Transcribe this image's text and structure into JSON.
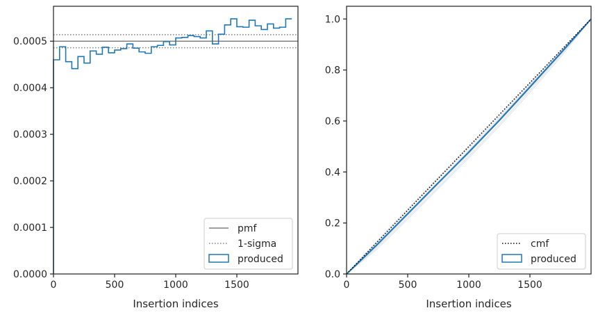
{
  "chart_data": [
    {
      "type": "histogram",
      "xlabel": "Insertion indices",
      "ylabel": "",
      "xlim": [
        0,
        2000
      ],
      "ylim": [
        0,
        0.000575
      ],
      "xticks": [
        0,
        500,
        1000,
        1500
      ],
      "xtick_labels": [
        "0",
        "500",
        "1000",
        "1500"
      ],
      "yticks": [
        0,
        0.0001,
        0.0002,
        0.0003,
        0.0004,
        0.0005
      ],
      "ytick_labels": [
        "0.0000",
        "0.0001",
        "0.0002",
        "0.0003",
        "0.0004",
        "0.0005"
      ],
      "pmf": 0.0005,
      "sigma_band": [
        0.000486,
        0.000514
      ],
      "bin_width": 50,
      "produced": [
        0.00046,
        0.000488,
        0.000456,
        0.000441,
        0.000467,
        0.000453,
        0.000479,
        0.000472,
        0.000487,
        0.000475,
        0.000481,
        0.000484,
        0.000494,
        0.000485,
        0.000477,
        0.000474,
        0.000488,
        0.000491,
        0.000499,
        0.000492,
        0.000507,
        0.000508,
        0.000512,
        0.00051,
        0.000507,
        0.000522,
        0.000494,
        0.000515,
        0.000535,
        0.000548,
        0.000531,
        0.00053,
        0.000545,
        0.000533,
        0.000525,
        0.000537,
        0.000528,
        0.00053,
        0.000548
      ],
      "legend": {
        "placement": "lower-right",
        "entries": [
          {
            "label": "pmf",
            "style": "solid",
            "color": "#808080"
          },
          {
            "label": "1-sigma",
            "style": "dotted",
            "color": "#808080"
          },
          {
            "label": "produced",
            "style": "box",
            "color": "#1f77b4"
          }
        ]
      }
    },
    {
      "type": "line",
      "xlabel": "Insertion indices",
      "ylabel": "",
      "xlim": [
        0,
        2000
      ],
      "ylim": [
        0,
        1.05
      ],
      "xticks": [
        0,
        500,
        1000,
        1500
      ],
      "xtick_labels": [
        "0",
        "500",
        "1000",
        "1500"
      ],
      "yticks": [
        0,
        0.2,
        0.4,
        0.6,
        0.8,
        1.0
      ],
      "ytick_labels": [
        "0.0",
        "0.2",
        "0.4",
        "0.6",
        "0.8",
        "1.0"
      ],
      "cmf": {
        "x": [
          0,
          2000
        ],
        "y": [
          0,
          1.0
        ]
      },
      "produced": {
        "x": [
          0,
          250,
          500,
          750,
          1000,
          1250,
          1500,
          1750,
          2000
        ],
        "y": [
          0,
          0.115,
          0.236,
          0.357,
          0.478,
          0.603,
          0.733,
          0.865,
          1.0
        ]
      },
      "samples": [
        {
          "x": [
            0,
            250,
            500,
            750,
            1000,
            1250,
            1500,
            1750,
            2000
          ],
          "y": [
            0,
            0.105,
            0.222,
            0.341,
            0.462,
            0.588,
            0.72,
            0.857,
            1.0
          ]
        },
        {
          "x": [
            0,
            250,
            500,
            750,
            1000,
            1250,
            1500,
            1750,
            2000
          ],
          "y": [
            0,
            0.125,
            0.248,
            0.372,
            0.494,
            0.617,
            0.745,
            0.872,
            1.0
          ]
        },
        {
          "x": [
            0,
            250,
            500,
            750,
            1000,
            1250,
            1500,
            1750,
            2000
          ],
          "y": [
            0,
            0.11,
            0.23,
            0.35,
            0.47,
            0.6,
            0.735,
            0.87,
            1.0
          ]
        },
        {
          "x": [
            0,
            250,
            500,
            750,
            1000,
            1250,
            1500,
            1750,
            2000
          ],
          "y": [
            0,
            0.12,
            0.24,
            0.362,
            0.485,
            0.61,
            0.738,
            0.866,
            1.0
          ]
        },
        {
          "x": [
            0,
            250,
            500,
            750,
            1000,
            1250,
            1500,
            1750,
            2000
          ],
          "y": [
            0,
            0.098,
            0.215,
            0.335,
            0.455,
            0.58,
            0.712,
            0.85,
            1.0
          ]
        },
        {
          "x": [
            0,
            250,
            500,
            750,
            1000,
            1250,
            1500,
            1750,
            2000
          ],
          "y": [
            0,
            0.13,
            0.255,
            0.378,
            0.5,
            0.624,
            0.75,
            0.876,
            1.0
          ]
        },
        {
          "x": [
            0,
            250,
            500,
            750,
            1000,
            1250,
            1500,
            1750,
            2000
          ],
          "y": [
            0,
            0.112,
            0.232,
            0.355,
            0.48,
            0.598,
            0.728,
            0.862,
            1.0
          ]
        },
        {
          "x": [
            0,
            250,
            500,
            750,
            1000,
            1250,
            1500,
            1750,
            2000
          ],
          "y": [
            0,
            0.118,
            0.238,
            0.36,
            0.474,
            0.606,
            0.74,
            0.868,
            1.0
          ]
        }
      ],
      "legend": {
        "placement": "lower-right",
        "entries": [
          {
            "label": "cmf",
            "style": "dotted",
            "color": "#000000"
          },
          {
            "label": "produced",
            "style": "box",
            "color": "#1f77b4"
          }
        ]
      }
    }
  ]
}
